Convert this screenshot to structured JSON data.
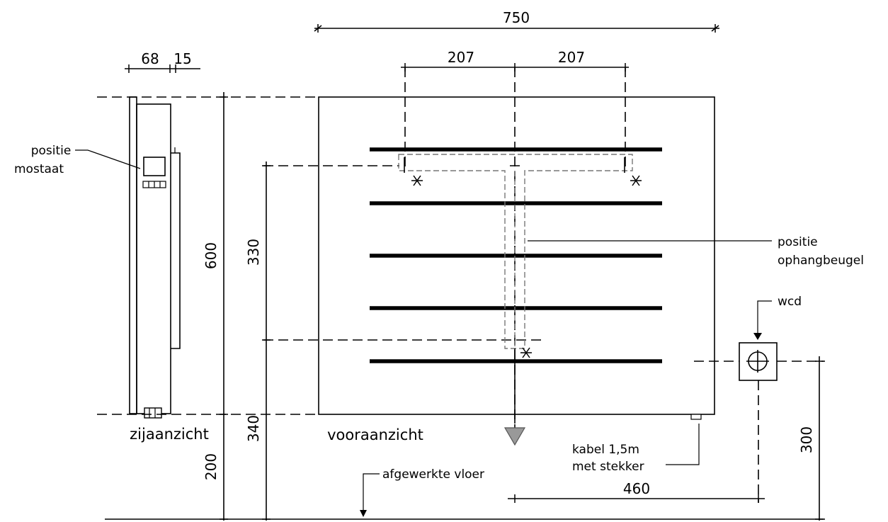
{
  "dimensions": {
    "total_width": "750",
    "bracket_left": "207",
    "bracket_right": "207",
    "side_depth": "68",
    "side_gap": "15",
    "height": "600",
    "bracket_height": "330",
    "bracket_floor": "340",
    "floor_clearance": "200",
    "socket_height": "300",
    "socket_offset": "460"
  },
  "labels": {
    "thermostat_line1": "positie",
    "thermostat_line2": "mostaat",
    "bracket_line1": "positie",
    "bracket_line2": "ophangbeugel",
    "socket": "wcd",
    "side_view": "zijaanzicht",
    "front_view": "vooraanzicht",
    "cable_line1": "kabel  1,5m",
    "cable_line2": "met  stekker",
    "floor": "afgewerkte  vloer"
  }
}
